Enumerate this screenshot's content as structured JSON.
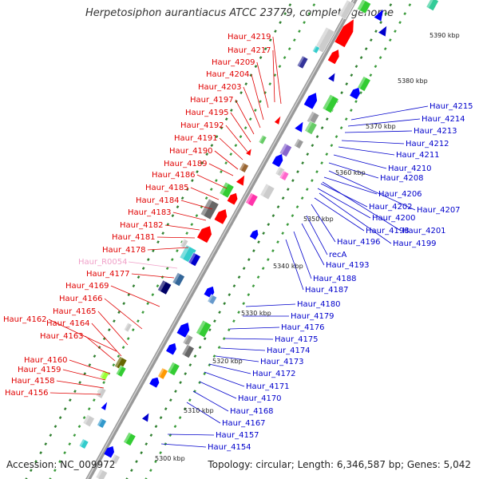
{
  "title": "Herpetosiphon aurantiacus ATCC 23779, complete genome",
  "footer": {
    "accession": "Accession: NC_009972",
    "summary": "Topology: circular; Length: 6,346,587 bp; Genes: 5,042"
  },
  "colors": {
    "left_label": "#e00000",
    "right_label": "#0000cc",
    "rna_label": "#f0a0c8",
    "backbone": "#999999"
  },
  "scale_ticks": [
    "5390 kbp",
    "5380 kbp",
    "5370 kbp",
    "5360 kbp",
    "5350 kbp",
    "5340 kbp",
    "5330 kbp",
    "5320 kbp",
    "5310 kbp",
    "5300 kbp"
  ],
  "left_labels": [
    "Haur_4219",
    "Haur_4217",
    "Haur_4209",
    "Haur_4204",
    "Haur_4203",
    "Haur_4197",
    "Haur_4195",
    "Haur_4192",
    "Haur_4191",
    "Haur_4190",
    "Haur_4189",
    "Haur_4186",
    "Haur_4185",
    "Haur_4184",
    "Haur_4183",
    "Haur_4182",
    "Haur_4181",
    "Haur_4178",
    "Haur_R0054",
    "Haur_4177",
    "Haur_4169",
    "Haur_4166",
    "Haur_4165",
    "Haur_4162",
    "Haur_4164",
    "Haur_4163",
    "Haur_4160",
    "Haur_4159",
    "Haur_4158",
    "Haur_4156"
  ],
  "right_labels": [
    "Haur_4215",
    "Haur_4214",
    "Haur_4213",
    "Haur_4212",
    "Haur_4211",
    "Haur_4210",
    "Haur_4208",
    "Haur_4207",
    "Haur_4206",
    "Haur_4202",
    "Haur_4200",
    "Haur_4201",
    "Haur_4198",
    "Haur_4199",
    "Haur_4196",
    "recA",
    "Haur_4193",
    "Haur_4188",
    "Haur_4187",
    "Haur_4180",
    "Haur_4179",
    "Haur_4176",
    "Haur_4175",
    "Haur_4174",
    "Haur_4173",
    "Haur_4172",
    "Haur_4171",
    "Haur_4170",
    "Haur_4168",
    "Haur_4167",
    "Haur_4157",
    "Haur_4154"
  ]
}
